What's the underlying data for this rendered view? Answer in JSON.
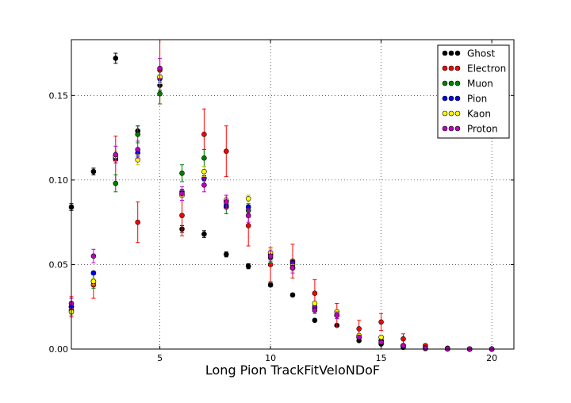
{
  "chart_data": {
    "type": "scatter",
    "title": "",
    "xlabel": "Long Pion TrackFitVeloNDoF",
    "ylabel": "",
    "xlim": [
      1,
      21
    ],
    "ylim": [
      0,
      0.183
    ],
    "grid": true,
    "legend_placement": "top-right",
    "x_ticks": [
      5,
      10,
      15,
      20
    ],
    "x_tick_labels": [
      "5",
      "10",
      "15",
      "20"
    ],
    "y_ticks": [
      0.0,
      0.05,
      0.1,
      0.15
    ],
    "y_tick_labels": [
      "0.00",
      "0.05",
      "0.10",
      "0.15"
    ],
    "x": [
      1,
      2,
      3,
      4,
      5,
      6,
      7,
      8,
      9,
      10,
      11,
      12,
      13,
      14,
      15,
      16,
      17,
      18,
      19,
      20
    ],
    "series": [
      {
        "name": "Ghost",
        "color": "#000000",
        "values": [
          0.084,
          0.105,
          0.172,
          0.129,
          0.156,
          0.071,
          0.068,
          0.056,
          0.049,
          0.038,
          0.032,
          0.017,
          0.014,
          0.005,
          0.003,
          0.001,
          0.0003,
          0.0001,
          0.0,
          0.0
        ],
        "errors": [
          0.002,
          0.002,
          0.003,
          0.003,
          0.003,
          0.002,
          0.002,
          0.0015,
          0.0015,
          0.0012,
          0.001,
          0.0008,
          0.0007,
          0.0005,
          0.0003,
          0.0002,
          0.0001,
          0.0001,
          0.0,
          0.0
        ]
      },
      {
        "name": "Electron",
        "color": "#ff0000",
        "values": [
          0.025,
          0.038,
          0.112,
          0.075,
          0.165,
          0.079,
          0.127,
          0.117,
          0.073,
          0.05,
          0.052,
          0.033,
          0.02,
          0.012,
          0.016,
          0.006,
          0.002,
          0.0005,
          0.0001,
          0.0
        ],
        "errors": [
          0.006,
          0.008,
          0.014,
          0.012,
          0.02,
          0.012,
          0.015,
          0.015,
          0.012,
          0.01,
          0.01,
          0.008,
          0.007,
          0.005,
          0.005,
          0.003,
          0.001,
          0.0005,
          0.0002,
          0.0
        ]
      },
      {
        "name": "Muon",
        "color": "#007f00",
        "values": [
          0.023,
          0.04,
          0.098,
          0.127,
          0.151,
          0.104,
          0.113,
          0.084,
          0.082,
          0.054,
          0.05,
          0.024,
          0.02,
          0.007,
          0.005,
          0.002,
          0.0005,
          0.0001,
          0.0,
          0.0
        ],
        "errors": [
          0.003,
          0.004,
          0.005,
          0.005,
          0.006,
          0.005,
          0.005,
          0.004,
          0.004,
          0.003,
          0.003,
          0.002,
          0.002,
          0.001,
          0.001,
          0.0005,
          0.0002,
          0.0001,
          0.0,
          0.0
        ]
      },
      {
        "name": "Pion",
        "color": "#0000ff",
        "values": [
          0.025,
          0.045,
          0.113,
          0.116,
          0.16,
          0.093,
          0.101,
          0.085,
          0.084,
          0.056,
          0.051,
          0.025,
          0.02,
          0.007,
          0.005,
          0.002,
          0.0005,
          0.0001,
          0.0,
          0.0
        ],
        "errors": [
          0.001,
          0.001,
          0.002,
          0.002,
          0.002,
          0.0015,
          0.0015,
          0.0012,
          0.0012,
          0.001,
          0.001,
          0.0007,
          0.0006,
          0.0003,
          0.0003,
          0.0002,
          0.0001,
          0.0,
          0.0,
          0.0
        ]
      },
      {
        "name": "Kaon",
        "color": "#ffff00",
        "values": [
          0.022,
          0.04,
          0.114,
          0.112,
          0.161,
          0.091,
          0.105,
          0.088,
          0.089,
          0.057,
          0.048,
          0.027,
          0.022,
          0.008,
          0.007,
          0.002,
          0.0005,
          0.0001,
          0.0,
          0.0
        ],
        "errors": [
          0.002,
          0.002,
          0.003,
          0.003,
          0.004,
          0.003,
          0.003,
          0.002,
          0.002,
          0.002,
          0.002,
          0.001,
          0.001,
          0.0007,
          0.0006,
          0.0003,
          0.0002,
          0.0001,
          0.0,
          0.0
        ]
      },
      {
        "name": "Proton",
        "color": "#bf00bf",
        "values": [
          0.027,
          0.055,
          0.115,
          0.118,
          0.166,
          0.092,
          0.097,
          0.087,
          0.079,
          0.055,
          0.048,
          0.023,
          0.02,
          0.007,
          0.004,
          0.002,
          0.0005,
          0.0001,
          0.0,
          0.0
        ],
        "errors": [
          0.003,
          0.004,
          0.005,
          0.005,
          0.006,
          0.004,
          0.004,
          0.004,
          0.004,
          0.003,
          0.003,
          0.002,
          0.002,
          0.001,
          0.001,
          0.0005,
          0.0002,
          0.0001,
          0.0,
          0.0
        ]
      }
    ]
  }
}
